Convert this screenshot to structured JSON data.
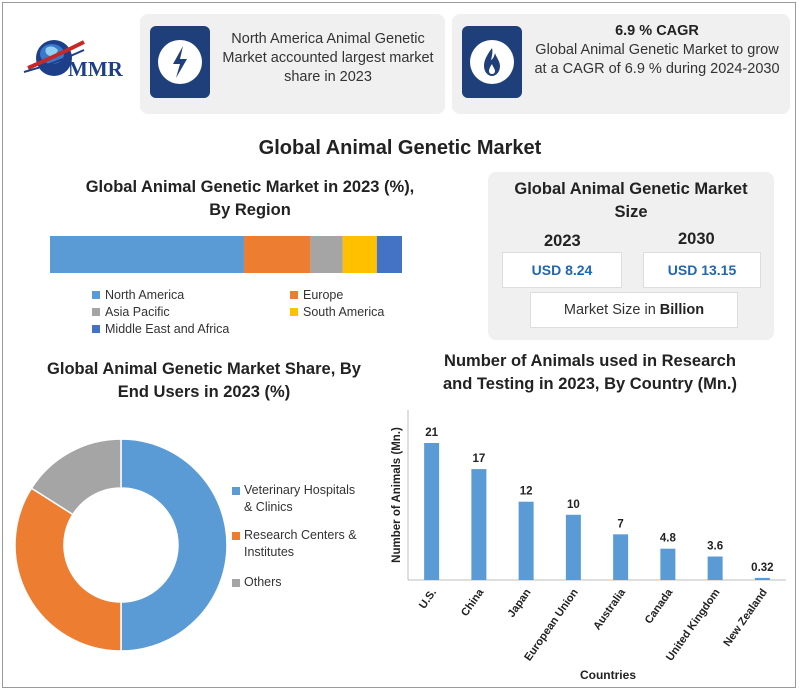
{
  "logo": {
    "text": "MMR",
    "icon": "globe-logo-icon"
  },
  "cards": [
    {
      "icon": "lightning-icon",
      "text": "North America Animal Genetic Market accounted largest market share in 2023"
    },
    {
      "icon": "flame-icon",
      "title": "6.9 % CAGR",
      "text": "Global Animal Genetic Market to grow at a CAGR of 6.9 % during 2024-2030"
    }
  ],
  "main_title": "Global Animal Genetic Market",
  "region": {
    "title_line1": "Global Animal Genetic Market in 2023 (%),",
    "title_line2": "By Region",
    "legend": [
      "North America",
      "Europe",
      "Asia Pacific",
      "South America",
      "Middle East and Africa"
    ],
    "colors": [
      "#5b9bd5",
      "#ed7d31",
      "#a5a5a5",
      "#ffc000",
      "#4472c4"
    ]
  },
  "market_size": {
    "title_line1": "Global Animal Genetic Market",
    "title_line2": "Size",
    "year1": "2023",
    "value1": "USD 8.24",
    "year2": "2030",
    "value2": "USD 13.15",
    "unit_prefix": "Market Size in ",
    "unit_bold": "Billion"
  },
  "end_users": {
    "title_line1": "Global Animal Genetic Market Share, By",
    "title_line2": "End Users in 2023 (%)",
    "legend": [
      {
        "line1": "Veterinary Hospitals",
        "line2": "& Clinics"
      },
      {
        "line1": "Research Centers &",
        "line2": "Institutes"
      },
      {
        "line1": "Others",
        "line2": ""
      }
    ]
  },
  "animals": {
    "title_line1": "Number of Animals used in Research",
    "title_line2": "and Testing in 2023, By Country (Mn.)"
  },
  "chart_data": [
    {
      "type": "bar",
      "orientation": "horizontal-stacked",
      "title": "Global Animal Genetic Market in 2023 (%), By Region",
      "categories": [
        "North America",
        "Europe",
        "Asia Pacific",
        "South America",
        "Middle East and Africa"
      ],
      "values": [
        54,
        18.5,
        9,
        9.5,
        7
      ],
      "colors": [
        "#5b9bd5",
        "#ed7d31",
        "#a5a5a5",
        "#ffc000",
        "#4472c4"
      ],
      "legend": "bottom"
    },
    {
      "type": "pie",
      "donut": true,
      "title": "Global Animal Genetic Market Share, By End Users in 2023 (%)",
      "categories": [
        "Veterinary Hospitals & Clinics",
        "Research Centers & Institutes",
        "Others"
      ],
      "values": [
        50,
        34,
        16
      ],
      "colors": [
        "#5b9bd5",
        "#ed7d31",
        "#a5a5a5"
      ],
      "legend": "right"
    },
    {
      "type": "bar",
      "title": "Number of Animals used in Research and Testing in 2023, By Country (Mn.)",
      "xlabel": "Countries",
      "ylabel": "Number of Animals (Mn.)",
      "categories": [
        "U.S.",
        "China",
        "Japan",
        "European Union",
        "Australia",
        "Canada",
        "United Kingdom",
        "New Zealand"
      ],
      "values": [
        21,
        17,
        12,
        10,
        7,
        4.8,
        3.6,
        0.32
      ],
      "labels": [
        "21",
        "17",
        "12",
        "10",
        "7",
        "4.8",
        "3.6",
        "0.32"
      ],
      "ylim": [
        0,
        21
      ],
      "color": "#5b9bd5"
    }
  ]
}
